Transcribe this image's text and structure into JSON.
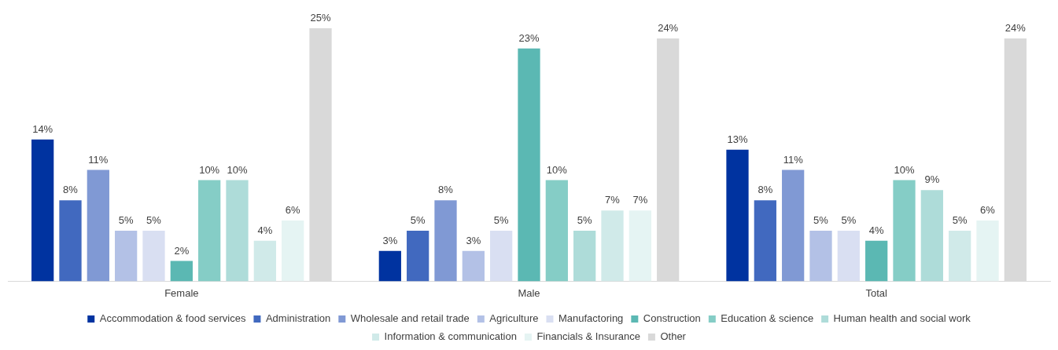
{
  "chart_data": {
    "type": "bar",
    "categories": [
      "Female",
      "Male",
      "Total"
    ],
    "series": [
      {
        "name": "Accommodation & food services",
        "color": "#0033a0",
        "values": [
          14,
          3,
          13
        ],
        "value_labels": [
          "14%",
          "3%",
          "13%"
        ]
      },
      {
        "name": "Administration",
        "color": "#4169bf",
        "values": [
          8,
          5,
          8
        ],
        "value_labels": [
          "8%",
          "5%",
          "8%"
        ]
      },
      {
        "name": "Wholesale and retail trade",
        "color": "#8099d4",
        "values": [
          11,
          8,
          11
        ],
        "value_labels": [
          "11%",
          "8%",
          "11%"
        ]
      },
      {
        "name": "Agriculture",
        "color": "#b3c1e6",
        "values": [
          5,
          3,
          5
        ],
        "value_labels": [
          "5%",
          "3%",
          "5%"
        ]
      },
      {
        "name": "Manufactoring",
        "color": "#d9dff2",
        "values": [
          5,
          5,
          5
        ],
        "value_labels": [
          "5%",
          "5%",
          "5%"
        ]
      },
      {
        "name": "Construction",
        "color": "#5bb8b3",
        "values": [
          2,
          23,
          4
        ],
        "value_labels": [
          "2%",
          "23%",
          "4%"
        ]
      },
      {
        "name": "Education & science",
        "color": "#85cdc6",
        "values": [
          10,
          10,
          10
        ],
        "value_labels": [
          "10%",
          "10%",
          "10%"
        ]
      },
      {
        "name": "Human health and social work",
        "color": "#aedcd9",
        "values": [
          10,
          5,
          9
        ],
        "value_labels": [
          "10%",
          "5%",
          "9%"
        ]
      },
      {
        "name": "Information & communication",
        "color": "#d0eae9",
        "values": [
          4,
          7,
          5
        ],
        "value_labels": [
          "4%",
          "7%",
          "5%"
        ]
      },
      {
        "name": "Financials & Insurance",
        "color": "#e5f4f3",
        "values": [
          6,
          7,
          6
        ],
        "value_labels": [
          "6%",
          "7%",
          "6%"
        ]
      },
      {
        "name": "Other",
        "color": "#d9d9d9",
        "values": [
          25,
          24,
          24
        ],
        "value_labels": [
          "25%",
          "24%",
          "24%"
        ]
      }
    ],
    "tick_labels": "x",
    "legend": "bottom"
  }
}
